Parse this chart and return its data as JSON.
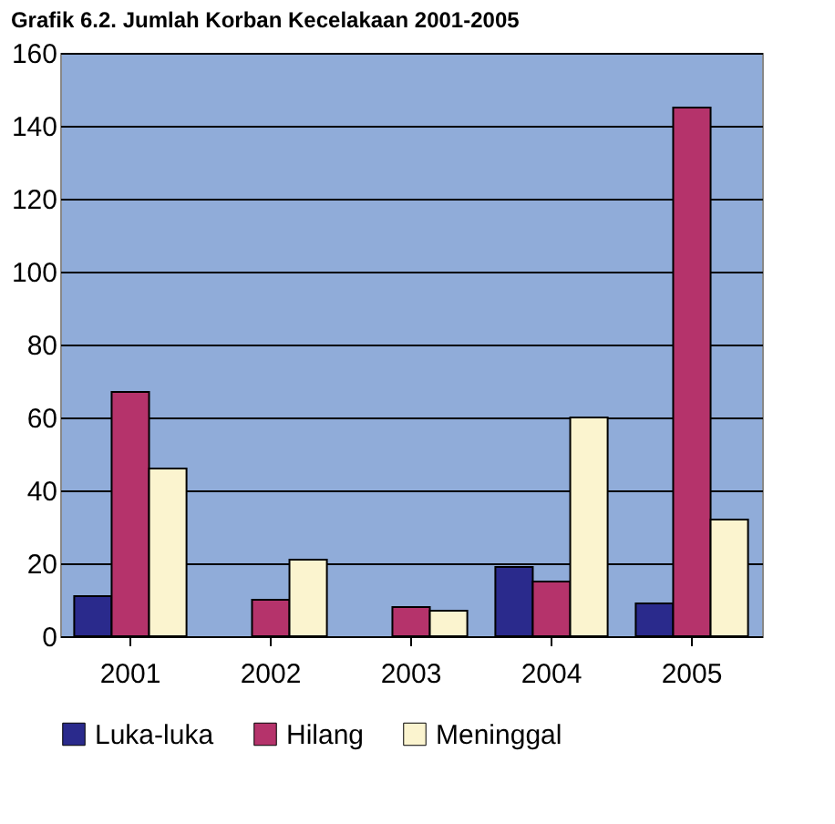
{
  "chart_data": {
    "type": "bar",
    "title": "Grafik 6.2. Jumlah Korban Kecelakaan 2001-2005",
    "categories": [
      "2001",
      "2002",
      "2003",
      "2004",
      "2005"
    ],
    "series": [
      {
        "name": "Luka-luka",
        "color": "#2a2a8c",
        "values": [
          11,
          null,
          null,
          19,
          9
        ]
      },
      {
        "name": "Hilang",
        "color": "#b5336b",
        "values": [
          67,
          10,
          8,
          15,
          145
        ]
      },
      {
        "name": "Meninggal",
        "color": "#fbf4cf",
        "values": [
          46,
          21,
          7,
          60,
          32
        ]
      }
    ],
    "ylim": [
      0,
      160
    ],
    "yticks": [
      0,
      20,
      40,
      60,
      80,
      100,
      120,
      140,
      160
    ],
    "grid": "y",
    "legend": "bottom"
  }
}
